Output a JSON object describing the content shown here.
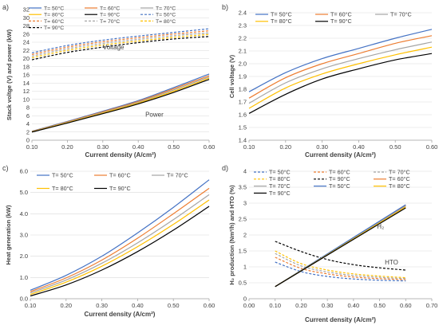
{
  "colors": {
    "t50": "#4472C4",
    "t60": "#ED7D31",
    "t70": "#A5A5A5",
    "t80": "#FFC000",
    "t90": "#000000",
    "grid": "#d9d9d9",
    "axis": "#a6a6a6"
  },
  "chart_data": [
    {
      "panel_label": "a)",
      "type": "line",
      "xlabel": "Current density (A/cm²)",
      "ylabel": "Stack voltge (V) and power (kW)",
      "xlim": [
        0.1,
        0.6
      ],
      "ylim": [
        0,
        32
      ],
      "xticks": [
        0.1,
        0.2,
        0.3,
        0.4,
        0.5,
        0.6
      ],
      "xtick_labels": [
        "0.10",
        "0.20",
        "0.30",
        "0.40",
        "0.50",
        "0.60"
      ],
      "yticks": [
        0,
        2,
        4,
        6,
        8,
        10,
        12,
        14,
        16,
        18,
        20,
        22,
        24,
        26,
        28,
        30,
        32
      ],
      "ytick_labels": [
        "0",
        "2",
        "4",
        "6",
        "8",
        "10",
        "12",
        "14",
        "16",
        "18",
        "20",
        "22",
        "24",
        "26",
        "28",
        "30",
        "32"
      ],
      "grid": "horizontal",
      "legend": "top",
      "annotations": [
        {
          "text": "Voltage",
          "x": 0.3,
          "y": 22.2
        },
        {
          "text": "Power",
          "x": 0.42,
          "y": 5.8
        }
      ],
      "series": [
        {
          "name": "T= 50°C",
          "color": "t50",
          "dash": false,
          "x": [
            0.1,
            0.2,
            0.3,
            0.4,
            0.5,
            0.6
          ],
          "y": [
            2.2,
            4.6,
            7.1,
            9.7,
            12.9,
            16.2
          ]
        },
        {
          "name": "T= 60°C",
          "color": "t60",
          "dash": false,
          "x": [
            0.1,
            0.2,
            0.3,
            0.4,
            0.5,
            0.6
          ],
          "y": [
            2.15,
            4.5,
            6.95,
            9.5,
            12.6,
            15.8
          ]
        },
        {
          "name": "T= 70°C",
          "color": "t70",
          "dash": false,
          "x": [
            0.1,
            0.2,
            0.3,
            0.4,
            0.5,
            0.6
          ],
          "y": [
            2.1,
            4.4,
            6.8,
            9.3,
            12.3,
            15.5
          ]
        },
        {
          "name": "T= 80°C",
          "color": "t80",
          "dash": false,
          "x": [
            0.1,
            0.2,
            0.3,
            0.4,
            0.5,
            0.6
          ],
          "y": [
            2.05,
            4.3,
            6.65,
            9.1,
            12.0,
            15.2
          ]
        },
        {
          "name": "T= 90°C",
          "color": "t90",
          "dash": false,
          "x": [
            0.1,
            0.2,
            0.3,
            0.4,
            0.5,
            0.6
          ],
          "y": [
            2.0,
            4.2,
            6.5,
            8.9,
            11.7,
            14.9
          ]
        },
        {
          "name": "T= 50°C",
          "color": "t50",
          "dash": true,
          "x": [
            0.1,
            0.2,
            0.3,
            0.4,
            0.5,
            0.6
          ],
          "y": [
            21.4,
            23.2,
            24.5,
            25.5,
            26.4,
            27.3
          ]
        },
        {
          "name": "T= 60°C",
          "color": "t60",
          "dash": true,
          "x": [
            0.1,
            0.2,
            0.3,
            0.4,
            0.5,
            0.6
          ],
          "y": [
            21.0,
            22.8,
            24.1,
            25.1,
            26.0,
            26.8
          ]
        },
        {
          "name": "T= 70°C",
          "color": "t70",
          "dash": true,
          "x": [
            0.1,
            0.2,
            0.3,
            0.4,
            0.5,
            0.6
          ],
          "y": [
            20.6,
            22.4,
            23.7,
            24.7,
            25.6,
            26.3
          ]
        },
        {
          "name": "T= 80°C",
          "color": "t80",
          "dash": true,
          "x": [
            0.1,
            0.2,
            0.3,
            0.4,
            0.5,
            0.6
          ],
          "y": [
            20.2,
            22.0,
            23.3,
            24.3,
            25.2,
            25.9
          ]
        },
        {
          "name": "T= 90°C",
          "color": "t90",
          "dash": true,
          "x": [
            0.1,
            0.2,
            0.3,
            0.4,
            0.5,
            0.6
          ],
          "y": [
            19.7,
            21.5,
            22.8,
            23.9,
            24.8,
            25.4
          ]
        }
      ]
    },
    {
      "panel_label": "b)",
      "type": "line",
      "xlabel": "Current density (A/cm²)",
      "ylabel": "Cell voltage (V)",
      "xlim": [
        0.1,
        0.6
      ],
      "ylim": [
        1.4,
        2.4
      ],
      "xticks": [
        0.1,
        0.2,
        0.3,
        0.4,
        0.5,
        0.6
      ],
      "xtick_labels": [
        "0.10",
        "0.20",
        "0.30",
        "0.40",
        "0.50",
        "0.60"
      ],
      "yticks": [
        1.4,
        1.5,
        1.6,
        1.7,
        1.8,
        1.9,
        2.0,
        2.1,
        2.2,
        2.3,
        2.4
      ],
      "ytick_labels": [
        "1.4",
        "1.5",
        "1.6",
        "1.7",
        "1.8",
        "1.9",
        "2.0",
        "2.1",
        "2.2",
        "2.3",
        "2.4"
      ],
      "grid": "horizontal",
      "legend": "top",
      "series": [
        {
          "name": "T= 50°C",
          "color": "t50",
          "dash": false,
          "x": [
            0.1,
            0.2,
            0.3,
            0.4,
            0.5,
            0.6
          ],
          "y": [
            1.78,
            1.93,
            2.04,
            2.12,
            2.2,
            2.27
          ]
        },
        {
          "name": "T= 60°C",
          "color": "t60",
          "dash": false,
          "x": [
            0.1,
            0.2,
            0.3,
            0.4,
            0.5,
            0.6
          ],
          "y": [
            1.73,
            1.89,
            2.0,
            2.08,
            2.16,
            2.22
          ]
        },
        {
          "name": "T= 70°C",
          "color": "t70",
          "dash": false,
          "x": [
            0.1,
            0.2,
            0.3,
            0.4,
            0.5,
            0.6
          ],
          "y": [
            1.69,
            1.85,
            1.96,
            2.04,
            2.11,
            2.17
          ]
        },
        {
          "name": "T= 80°C",
          "color": "t80",
          "dash": false,
          "x": [
            0.1,
            0.2,
            0.3,
            0.4,
            0.5,
            0.6
          ],
          "y": [
            1.65,
            1.81,
            1.92,
            2.0,
            2.07,
            2.13
          ]
        },
        {
          "name": "T= 90°C",
          "color": "t90",
          "dash": false,
          "x": [
            0.1,
            0.2,
            0.3,
            0.4,
            0.5,
            0.6
          ],
          "y": [
            1.61,
            1.76,
            1.88,
            1.96,
            2.03,
            2.08
          ]
        }
      ]
    },
    {
      "panel_label": "c)",
      "type": "line",
      "xlabel": "Current density (A/cm²)",
      "ylabel": "Heat generation (kW)",
      "xlim": [
        0.1,
        0.6
      ],
      "ylim": [
        0,
        6
      ],
      "xticks": [
        0.1,
        0.2,
        0.3,
        0.4,
        0.5,
        0.6
      ],
      "xtick_labels": [
        "0.10",
        "0.20",
        "0.30",
        "0.40",
        "0.50",
        "0.60"
      ],
      "yticks": [
        0,
        1,
        2,
        3,
        4,
        5,
        6
      ],
      "ytick_labels": [
        "0.0",
        "1.0",
        "2.0",
        "3.0",
        "4.0",
        "5.0",
        "6.0"
      ],
      "grid": "horizontal",
      "legend": "top",
      "series": [
        {
          "name": "T= 50°C",
          "color": "t50",
          "dash": false,
          "x": [
            0.1,
            0.2,
            0.3,
            0.4,
            0.5,
            0.6
          ],
          "y": [
            0.4,
            1.1,
            2.0,
            3.1,
            4.3,
            5.6
          ]
        },
        {
          "name": "T= 60°C",
          "color": "t60",
          "dash": false,
          "x": [
            0.1,
            0.2,
            0.3,
            0.4,
            0.5,
            0.6
          ],
          "y": [
            0.33,
            0.98,
            1.82,
            2.85,
            4.0,
            5.2
          ]
        },
        {
          "name": "T= 70°C",
          "color": "t70",
          "dash": false,
          "x": [
            0.1,
            0.2,
            0.3,
            0.4,
            0.5,
            0.6
          ],
          "y": [
            0.27,
            0.88,
            1.67,
            2.63,
            3.72,
            4.9
          ]
        },
        {
          "name": "T= 80°C",
          "color": "t80",
          "dash": false,
          "x": [
            0.1,
            0.2,
            0.3,
            0.4,
            0.5,
            0.6
          ],
          "y": [
            0.2,
            0.78,
            1.53,
            2.45,
            3.5,
            4.65
          ]
        },
        {
          "name": "T= 90°C",
          "color": "t90",
          "dash": false,
          "x": [
            0.1,
            0.2,
            0.3,
            0.4,
            0.5,
            0.6
          ],
          "y": [
            0.13,
            0.65,
            1.35,
            2.22,
            3.23,
            4.35
          ]
        }
      ]
    },
    {
      "panel_label": "d)",
      "type": "line",
      "xlabel": "Current density (A/cm²)",
      "ylabel": "H₂ production (Nm³/h) and HTO (%)",
      "xlim": [
        0,
        0.7
      ],
      "ylim": [
        0,
        4
      ],
      "xticks": [
        0,
        0.1,
        0.2,
        0.3,
        0.4,
        0.5,
        0.6,
        0.7
      ],
      "xtick_labels": [
        "0.00",
        "0.10",
        "0.20",
        "0.30",
        "0.40",
        "0.50",
        "0.60",
        "0.70"
      ],
      "yticks": [
        0,
        0.5,
        1,
        1.5,
        2,
        2.5,
        3,
        3.5,
        4
      ],
      "ytick_labels": [
        "0",
        "0.5",
        "1",
        "1.5",
        "2",
        "2.5",
        "3",
        "3.5",
        "4"
      ],
      "grid": "horizontal",
      "legend": "top",
      "annotations": [
        {
          "text": "H₂",
          "x": 0.49,
          "y": 2.2
        },
        {
          "text": "HTO",
          "x": 0.52,
          "y": 1.07
        }
      ],
      "series": [
        {
          "name": "T= 50°C",
          "color": "t50",
          "dash": true,
          "x": [
            0.1,
            0.2,
            0.3,
            0.4,
            0.5,
            0.6
          ],
          "y": [
            1.15,
            0.85,
            0.7,
            0.62,
            0.58,
            0.56
          ]
        },
        {
          "name": "T= 60°C",
          "color": "t60",
          "dash": true,
          "x": [
            0.1,
            0.2,
            0.3,
            0.4,
            0.5,
            0.6
          ],
          "y": [
            1.3,
            0.95,
            0.78,
            0.68,
            0.63,
            0.6
          ]
        },
        {
          "name": "T= 70°C",
          "color": "t70",
          "dash": true,
          "x": [
            0.1,
            0.2,
            0.3,
            0.4,
            0.5,
            0.6
          ],
          "y": [
            1.42,
            1.03,
            0.84,
            0.73,
            0.67,
            0.63
          ]
        },
        {
          "name": "T= 80°C",
          "color": "t80",
          "dash": true,
          "x": [
            0.1,
            0.2,
            0.3,
            0.4,
            0.5,
            0.6
          ],
          "y": [
            1.5,
            1.1,
            0.9,
            0.78,
            0.71,
            0.66
          ]
        },
        {
          "name": "T= 90°C",
          "color": "t90",
          "dash": true,
          "x": [
            0.1,
            0.2,
            0.3,
            0.4,
            0.5,
            0.6
          ],
          "y": [
            1.8,
            1.48,
            1.23,
            1.07,
            0.97,
            0.9
          ]
        },
        {
          "name": "T= 60°C",
          "color": "t60",
          "dash": false,
          "x": [
            0.1,
            0.6
          ],
          "y": [
            0.38,
            2.93
          ]
        },
        {
          "name": "T= 70°C",
          "color": "t70",
          "dash": false,
          "x": [
            0.1,
            0.6
          ],
          "y": [
            0.38,
            2.91
          ]
        },
        {
          "name": "T= 50°C",
          "color": "t50",
          "dash": false,
          "x": [
            0.1,
            0.6
          ],
          "y": [
            0.38,
            2.95
          ]
        },
        {
          "name": "T= 80°C",
          "color": "t80",
          "dash": false,
          "x": [
            0.1,
            0.6
          ],
          "y": [
            0.38,
            2.88
          ]
        },
        {
          "name": "T= 90°C",
          "color": "t90",
          "dash": false,
          "x": [
            0.1,
            0.6
          ],
          "y": [
            0.38,
            2.85
          ]
        }
      ]
    }
  ]
}
